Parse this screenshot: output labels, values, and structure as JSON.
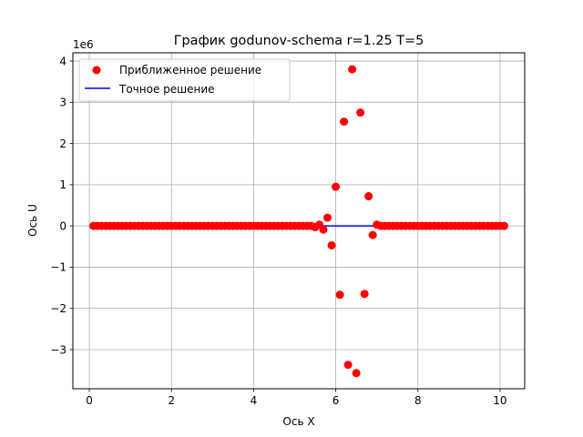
{
  "chart_data": {
    "type": "scatter",
    "title": "График godunov-schema r=1.25 T=5",
    "xlabel": "Ось X",
    "ylabel": "Ось U",
    "y_scale_label": "1e6",
    "xlim": [
      -0.4,
      10.6
    ],
    "ylim": [
      -3.95,
      4.2
    ],
    "x_ticks": [
      0,
      2,
      4,
      6,
      8,
      10
    ],
    "x_tick_labels": [
      "0",
      "2",
      "4",
      "6",
      "8",
      "10"
    ],
    "y_ticks": [
      -3,
      -2,
      -1,
      0,
      1,
      2,
      3,
      4
    ],
    "y_tick_labels": [
      "−3",
      "−2",
      "−1",
      "0",
      "1",
      "2",
      "3",
      "4"
    ],
    "grid": true,
    "legend_position": "upper-left",
    "series": [
      {
        "name": "Приближенное решение",
        "kind": "scatter",
        "color": "#ff0000",
        "x": [
          0.1,
          0.2,
          0.3,
          0.4,
          0.5,
          0.6,
          0.7,
          0.8,
          0.9,
          1.0,
          1.1,
          1.2,
          1.3,
          1.4,
          1.5,
          1.6,
          1.7,
          1.8,
          1.9,
          2.0,
          2.1,
          2.2,
          2.3,
          2.4,
          2.5,
          2.6,
          2.7,
          2.8,
          2.9,
          3.0,
          3.1,
          3.2,
          3.3,
          3.4,
          3.5,
          3.6,
          3.7,
          3.8,
          3.9,
          4.0,
          4.1,
          4.2,
          4.3,
          4.4,
          4.5,
          4.6,
          4.7,
          4.8,
          4.9,
          5.0,
          5.1,
          5.2,
          5.3,
          5.4,
          5.5,
          5.6,
          5.7,
          5.8,
          5.9,
          6.0,
          6.1,
          6.2,
          6.3,
          6.4,
          6.5,
          6.6,
          6.7,
          6.8,
          6.9,
          7.0,
          7.1,
          7.2,
          7.3,
          7.4,
          7.5,
          7.6,
          7.7,
          7.8,
          7.9,
          8.0,
          8.1,
          8.2,
          8.3,
          8.4,
          8.5,
          8.6,
          8.7,
          8.8,
          8.9,
          9.0,
          9.1,
          9.2,
          9.3,
          9.4,
          9.5,
          9.6,
          9.7,
          9.8,
          9.9,
          10.0,
          10.1
        ],
        "y": [
          0,
          0,
          0,
          0,
          0,
          0,
          0,
          0,
          0,
          0,
          0,
          0,
          0,
          0,
          0,
          0,
          0,
          0,
          0,
          0,
          0,
          0,
          0,
          0,
          0,
          0,
          0,
          0,
          0,
          0,
          0,
          0,
          0,
          0,
          0,
          0,
          0,
          0,
          0,
          0,
          0,
          0,
          0,
          0,
          0,
          0,
          0,
          0,
          0,
          0,
          0,
          0,
          0,
          0,
          -0.03,
          0.03,
          -0.09,
          0.2,
          -0.47,
          0.95,
          -1.67,
          2.53,
          -3.37,
          3.8,
          -3.57,
          2.75,
          -1.65,
          0.72,
          -0.22,
          0.03,
          0,
          0,
          0,
          0,
          0,
          0,
          0,
          0,
          0,
          0,
          0,
          0,
          0,
          0,
          0,
          0,
          0,
          0,
          0,
          0,
          0,
          0,
          0,
          0,
          0,
          0,
          0,
          0,
          0,
          0,
          0
        ]
      },
      {
        "name": "Точное решение",
        "kind": "line",
        "color": "#0000ff",
        "x": [
          0.1,
          10.1
        ],
        "y": [
          0,
          0
        ]
      }
    ]
  }
}
